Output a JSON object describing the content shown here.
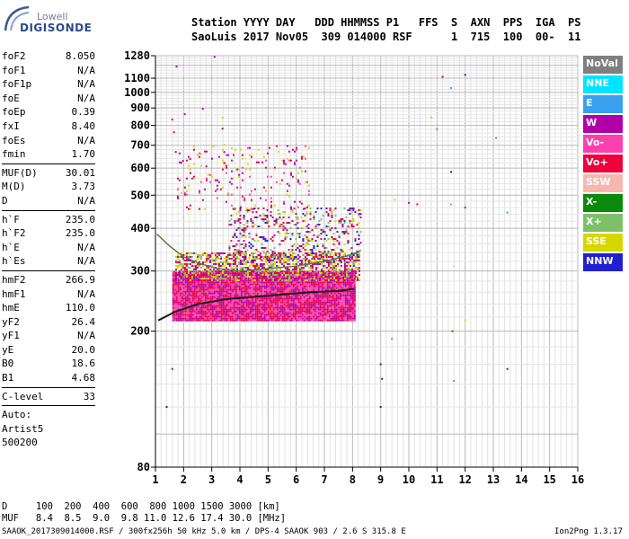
{
  "logo": {
    "top": "Lowell",
    "bottom": "DIGISONDE"
  },
  "header": {
    "line1": "Station YYYY DAY   DDD HHMMSS P1   FFS  S  AXN  PPS  IGA  PS",
    "line2": "SaoLuis 2017 Nov05  309 014000 RSF      1  715  100  00-  11"
  },
  "params": {
    "group1": [
      {
        "name": "foF2",
        "value": "8.050"
      },
      {
        "name": "foF1",
        "value": "N/A"
      },
      {
        "name": "foF1p",
        "value": "N/A"
      },
      {
        "name": "foE",
        "value": "N/A"
      },
      {
        "name": "foEp",
        "value": "0.39"
      },
      {
        "name": "fxI",
        "value": "8.40"
      },
      {
        "name": "foEs",
        "value": "N/A"
      },
      {
        "name": "fmin",
        "value": "1.70"
      }
    ],
    "group2": [
      {
        "name": "MUF(D)",
        "value": "30.01"
      },
      {
        "name": "M(D)",
        "value": "3.73"
      },
      {
        "name": "D",
        "value": "N/A"
      }
    ],
    "group3": [
      {
        "name": "h`F",
        "value": "235.0"
      },
      {
        "name": "h`F2",
        "value": "235.0"
      },
      {
        "name": "h`E",
        "value": "N/A"
      },
      {
        "name": "h`Es",
        "value": "N/A"
      }
    ],
    "group4": [
      {
        "name": "hmF2",
        "value": "266.9"
      },
      {
        "name": "hmF1",
        "value": "N/A"
      },
      {
        "name": "hmE",
        "value": "110.0"
      },
      {
        "name": "yF2",
        "value": "26.4"
      },
      {
        "name": "yF1",
        "value": "N/A"
      },
      {
        "name": "yE",
        "value": "20.0"
      },
      {
        "name": "B0",
        "value": "18.6"
      },
      {
        "name": "B1",
        "value": "4.68"
      }
    ],
    "group5": [
      {
        "name": "C-level",
        "value": "33"
      }
    ],
    "footer_lines": [
      "Auto:",
      "Artist5",
      "500200"
    ]
  },
  "legend": [
    {
      "label": "NoVal",
      "color": "#7f7f7f"
    },
    {
      "label": "NNE",
      "color": "#00e5ff"
    },
    {
      "label": "E",
      "color": "#3aa0f0"
    },
    {
      "label": "W",
      "color": "#b000a8"
    },
    {
      "label": "Vo-",
      "color": "#ff3fb0"
    },
    {
      "label": "Vo+",
      "color": "#f0003a"
    },
    {
      "label": "SSW",
      "color": "#f7b7b0"
    },
    {
      "label": "X-",
      "color": "#0a8a0a"
    },
    {
      "label": "X+",
      "color": "#7ec06a"
    },
    {
      "label": "SSE",
      "color": "#d7d700"
    },
    {
      "label": "NNW",
      "color": "#2020d0"
    }
  ],
  "footer": {
    "row1": "D     100  200  400  600  800 1000 1500 3000 [km]",
    "row2": "MUF   8.4  8.5  9.0  9.8 11.0 12.6 17.4 30.0 [MHz]",
    "file": "SAAOK_2017309014000.RSF / 300fx256h 50 kHz 5.0 km / DPS-4 SAAOK 903 / 2.6 S 315.8 E",
    "version": "Ion2Png 1.3.17"
  },
  "chart_data": {
    "type": "scatter",
    "title": "",
    "xlabel": "",
    "ylabel": "",
    "xlim": [
      1,
      16
    ],
    "ylim": [
      80,
      1280
    ],
    "y_scale": "log",
    "x_ticks": [
      "1",
      "2",
      "3",
      "4",
      "5",
      "6",
      "7",
      "8",
      "9",
      "10",
      "11",
      "12",
      "13",
      "14",
      "15",
      "16"
    ],
    "y_ticks": [
      80,
      200,
      300,
      400,
      500,
      600,
      700,
      800,
      900,
      1000,
      1100,
      1280
    ],
    "grid": true,
    "legend_position": "right",
    "trace_o": {
      "name": "",
      "color": "#1a1a1a",
      "x": [
        1.1,
        1.7,
        2.5,
        3.5,
        4.5,
        5.5,
        6.5,
        7.5,
        8.05
      ],
      "y": [
        215,
        228,
        240,
        248,
        252,
        256,
        260,
        262,
        266
      ]
    },
    "trace_upper": {
      "name": "",
      "color": "#5a7d4a",
      "x": [
        1.05,
        1.5,
        2.0,
        2.6,
        3.2,
        4.0,
        5.0,
        6.0,
        7.0,
        8.0,
        8.3
      ],
      "y": [
        385,
        355,
        330,
        315,
        305,
        300,
        305,
        310,
        320,
        335,
        345
      ]
    },
    "echo_clusters": [
      {
        "x": [
          1.6,
          8.1
        ],
        "y": [
          215,
          300
        ],
        "colors": [
          "#f0003a",
          "#ff3fb0",
          "#b000a8"
        ],
        "density": 1.0
      },
      {
        "x": [
          1.7,
          8.3
        ],
        "y": [
          280,
          340
        ],
        "colors": [
          "#d7d700",
          "#f0003a",
          "#7ec06a",
          "#b000a8"
        ],
        "density": 0.55
      },
      {
        "x": [
          3.6,
          8.3
        ],
        "y": [
          320,
          460
        ],
        "colors": [
          "#d7d700",
          "#b000a8",
          "#2020d0",
          "#f0003a",
          "#7ec06a"
        ],
        "density": 0.22
      },
      {
        "x": [
          1.7,
          6.5
        ],
        "y": [
          450,
          700
        ],
        "colors": [
          "#d7d700",
          "#b000a8",
          "#f0003a",
          "#ff3fb0"
        ],
        "density": 0.07
      },
      {
        "x": [
          1.5,
          3.5
        ],
        "y": [
          600,
          900
        ],
        "colors": [
          "#f0003a",
          "#b000a8",
          "#d7d700"
        ],
        "density": 0.02
      }
    ],
    "isolated_points": [
      {
        "x": 1.75,
        "y": 1190,
        "color": "#b000a8"
      },
      {
        "x": 3.1,
        "y": 1270,
        "color": "#b000a8"
      },
      {
        "x": 11.2,
        "y": 1110,
        "color": "#f0003a"
      },
      {
        "x": 11.5,
        "y": 1030,
        "color": "#3aa0f0"
      },
      {
        "x": 12.0,
        "y": 1125,
        "color": "#2020d0"
      },
      {
        "x": 11.5,
        "y": 585,
        "color": "#2020d0"
      },
      {
        "x": 13.1,
        "y": 735,
        "color": "#3aa0f0"
      },
      {
        "x": 12.0,
        "y": 460,
        "color": "#f0003a"
      },
      {
        "x": 11.0,
        "y": 780,
        "color": "#ff3fb0"
      },
      {
        "x": 10.8,
        "y": 845,
        "color": "#d7d700"
      },
      {
        "x": 11.5,
        "y": 470,
        "color": "#7ec06a"
      },
      {
        "x": 13.5,
        "y": 445,
        "color": "#3aa0f0"
      },
      {
        "x": 9.0,
        "y": 160,
        "color": "#2020d0"
      },
      {
        "x": 9.05,
        "y": 145,
        "color": "#2020d0"
      },
      {
        "x": 9.0,
        "y": 120,
        "color": "#2020d0"
      },
      {
        "x": 9.4,
        "y": 190,
        "color": "#3aa0f0"
      },
      {
        "x": 11.6,
        "y": 143,
        "color": "#3aa0f0"
      },
      {
        "x": 11.55,
        "y": 200,
        "color": "#0a8a0a"
      },
      {
        "x": 12.0,
        "y": 215,
        "color": "#d7d700"
      },
      {
        "x": 13.5,
        "y": 155,
        "color": "#2020d0"
      },
      {
        "x": 1.4,
        "y": 120,
        "color": "#2020d0"
      },
      {
        "x": 1.6,
        "y": 155,
        "color": "#b000a8"
      },
      {
        "x": 10.0,
        "y": 475,
        "color": "#b000a8"
      },
      {
        "x": 10.3,
        "y": 470,
        "color": "#f0003a"
      },
      {
        "x": 9.5,
        "y": 485,
        "color": "#d7d700"
      },
      {
        "x": 11.6,
        "y": 310,
        "color": "#f7b7b0"
      }
    ]
  }
}
